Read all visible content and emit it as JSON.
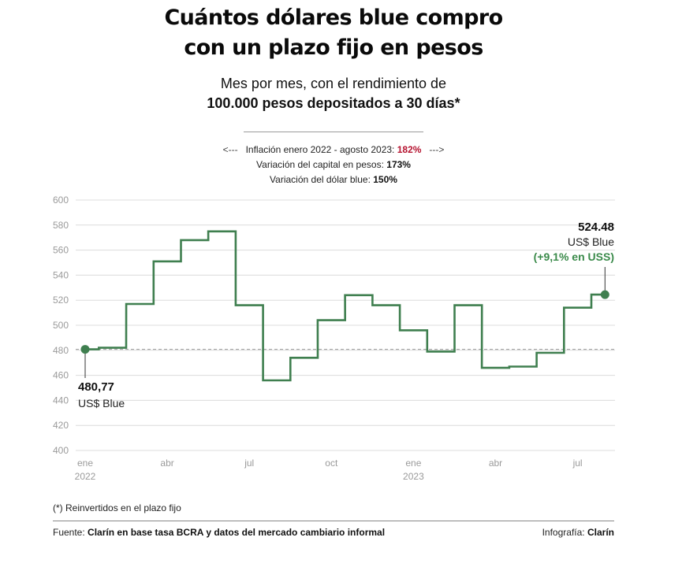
{
  "header": {
    "title_line1": "Cuántos dólares blue compro",
    "title_line2": "con un plazo fijo en pesos",
    "subtitle_line1": "Mes por mes, con el rendimiento de",
    "subtitle_line2": "100.000 pesos depositados a 30 días*"
  },
  "stats": {
    "arrow_left": "<---",
    "arrow_right": "--->",
    "inflation_label": "Inflación enero 2022 - agosto 2023:",
    "inflation_value": "182%",
    "capital_label": "Variación del capital en pesos:",
    "capital_value": "173%",
    "dollar_label": "Variación del dólar blue:",
    "dollar_value": "150%"
  },
  "colors": {
    "line": "#3f7f4f",
    "accent_green": "#3a8a4a",
    "inflation_red": "#b5122f",
    "grid": "#dcdcdc",
    "reference": "#9a9a9a"
  },
  "chart_data": {
    "type": "line",
    "step": true,
    "grid": true,
    "ylim": [
      400,
      600
    ],
    "y_ticks": [
      400,
      420,
      440,
      460,
      480,
      500,
      520,
      540,
      560,
      580,
      600
    ],
    "x_ticks": [
      {
        "index": 0,
        "label": "ene",
        "sublabel": "2022"
      },
      {
        "index": 3,
        "label": "abr",
        "sublabel": ""
      },
      {
        "index": 6,
        "label": "jul",
        "sublabel": ""
      },
      {
        "index": 9,
        "label": "oct",
        "sublabel": ""
      },
      {
        "index": 12,
        "label": "ene",
        "sublabel": "2023"
      },
      {
        "index": 15,
        "label": "abr",
        "sublabel": ""
      },
      {
        "index": 18,
        "label": "jul",
        "sublabel": ""
      }
    ],
    "series": [
      {
        "values": [
          480.77,
          482,
          517,
          551,
          568,
          575,
          516,
          456,
          474,
          504,
          524,
          516,
          496,
          479,
          516,
          466,
          467,
          478,
          514,
          524.48
        ]
      }
    ],
    "reference_value": 480.77,
    "start": {
      "value_label": "480,77",
      "unit_label": "US$ Blue"
    },
    "end": {
      "value_label": "524.48",
      "unit_label": "US$ Blue",
      "change_label": "(+9,1% en USS)"
    }
  },
  "footer": {
    "note": "(*) Reinvertidos en el plazo fijo",
    "source_label": "Fuente:",
    "source_text": "Clarín en base tasa BCRA y datos del mercado cambiario informal",
    "credit_label": "Infografía:",
    "credit_text": "Clarín"
  }
}
